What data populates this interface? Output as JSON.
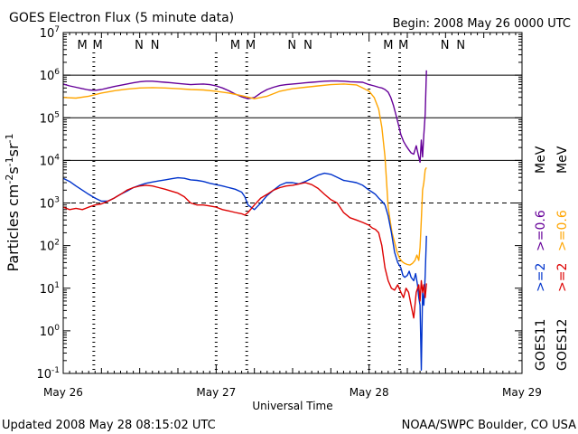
{
  "header": {
    "title": "GOES Electron Flux (5 minute data)",
    "begin": "Begin: 2008 May 26 0000 UTC"
  },
  "footer": {
    "updated": "Updated 2008 May 28 08:15:02 UTC",
    "credit": "NOAA/SWPC Boulder, CO USA"
  },
  "colors": {
    "goes11_06": "#660099",
    "goes12_06": "#ffa500",
    "goes11_2": "#0033cc",
    "goes12_2": "#dd0000",
    "marker_M": "#dd0000",
    "marker_N": "#0033cc",
    "axis": "#000000"
  },
  "chart_data": {
    "type": "line",
    "title": "GOES Electron Flux (5 minute data)",
    "xlabel": "Universal Time",
    "ylabel_parts": {
      "base": "Particles cm",
      "e1": "-2",
      "s": "s",
      "e2": "-1",
      "sr": "sr",
      "e3": "-1"
    },
    "y_scale": "log",
    "ylim": [
      0.1,
      10000000
    ],
    "y_ticks": [
      {
        "mantissa": "10",
        "exp": "-1",
        "value": 0.1
      },
      {
        "mantissa": "10",
        "exp": "0",
        "value": 1
      },
      {
        "mantissa": "10",
        "exp": "1",
        "value": 10
      },
      {
        "mantissa": "10",
        "exp": "2",
        "value": 100
      },
      {
        "mantissa": "10",
        "exp": "3",
        "value": 1000
      },
      {
        "mantissa": "10",
        "exp": "4",
        "value": 10000
      },
      {
        "mantissa": "10",
        "exp": "5",
        "value": 100000
      },
      {
        "mantissa": "10",
        "exp": "6",
        "value": 1000000
      },
      {
        "mantissa": "10",
        "exp": "7",
        "value": 10000000
      }
    ],
    "xlim": [
      0,
      72
    ],
    "x_unit": "hours since 2008 May 26 0000 UTC",
    "x_ticks": [
      {
        "label": "May 26",
        "value": 0
      },
      {
        "label": "May 27",
        "value": 24
      },
      {
        "label": "May 28",
        "value": 48
      },
      {
        "label": "May 29",
        "value": 72
      }
    ],
    "thresholds": [
      1000,
      10000,
      100000,
      1000000
    ],
    "threshold_dashed": 1000,
    "legend": {
      "goes11": "GOES11",
      "goes12": "GOES12",
      "e2_11": ">=2",
      "e2_12": ">=2",
      "e06_11": ">=0.6",
      "e06_12": ">=0.6",
      "unit": "MeV"
    },
    "markers": [
      {
        "label": "M",
        "x": 3.0,
        "color": "marker_M"
      },
      {
        "label": "M",
        "x": 5.4,
        "color": "marker_N"
      },
      {
        "label": "N",
        "x": 11.9,
        "color": "marker_M"
      },
      {
        "label": "N",
        "x": 14.4,
        "color": "marker_N"
      },
      {
        "label": "M",
        "x": 27.0,
        "color": "marker_M"
      },
      {
        "label": "M",
        "x": 29.4,
        "color": "marker_N"
      },
      {
        "label": "N",
        "x": 35.9,
        "color": "marker_M"
      },
      {
        "label": "N",
        "x": 38.4,
        "color": "marker_N"
      },
      {
        "label": "M",
        "x": 51.0,
        "color": "marker_M"
      },
      {
        "label": "M",
        "x": 53.4,
        "color": "marker_N"
      },
      {
        "label": "N",
        "x": 59.9,
        "color": "marker_M"
      },
      {
        "label": "N",
        "x": 62.4,
        "color": "marker_N"
      }
    ],
    "local_noon_lines": [
      {
        "x": 24.0
      },
      {
        "x": 48.0
      },
      {
        "x": 28.8
      },
      {
        "x": 52.8
      },
      {
        "x": 4.8
      }
    ],
    "series": [
      {
        "name": "GOES11 >=0.6 MeV",
        "color": "goes11_06",
        "x": [
          0,
          1,
          2,
          3,
          4,
          5,
          6,
          7,
          8,
          9,
          10,
          11,
          12,
          13,
          14,
          15,
          16,
          17,
          18,
          19,
          20,
          21,
          22,
          23,
          24,
          25,
          26,
          27,
          28,
          29,
          30,
          31,
          32,
          33,
          34,
          35,
          36,
          37,
          38,
          39,
          40,
          41,
          42,
          43,
          44,
          45,
          46,
          47,
          48,
          48.8,
          49.5,
          50.0,
          50.5,
          51.0,
          51.4,
          51.8,
          52.2,
          52.6,
          53.0,
          53.4,
          53.8,
          54.2,
          54.6,
          55.0,
          55.4,
          55.7,
          56.0,
          56.2,
          56.4,
          56.6,
          56.8,
          57.0
        ],
        "y": [
          620000,
          560000,
          520000,
          480000,
          450000,
          440000,
          460000,
          500000,
          540000,
          580000,
          620000,
          660000,
          700000,
          720000,
          720000,
          700000,
          680000,
          660000,
          640000,
          620000,
          600000,
          610000,
          620000,
          600000,
          560000,
          500000,
          430000,
          360000,
          310000,
          280000,
          300000,
          380000,
          460000,
          520000,
          570000,
          600000,
          620000,
          640000,
          660000,
          680000,
          700000,
          720000,
          730000,
          730000,
          720000,
          700000,
          690000,
          680000,
          600000,
          560000,
          520000,
          500000,
          460000,
          400000,
          300000,
          200000,
          120000,
          70000,
          40000,
          28000,
          22000,
          18000,
          15000,
          14000,
          22000,
          14000,
          9000,
          30000,
          12000,
          40000,
          120000,
          1300000
        ]
      },
      {
        "name": "GOES12 >=0.6 MeV",
        "color": "goes12_06",
        "x": [
          0,
          2,
          4,
          6,
          8,
          10,
          12,
          14,
          16,
          18,
          20,
          22,
          24,
          26,
          28,
          30,
          32,
          34,
          36,
          38,
          40,
          42,
          44,
          46,
          47,
          48,
          48.8,
          49.5,
          50.0,
          50.5,
          51.0,
          51.3,
          51.6,
          52.0,
          52.4,
          52.8,
          53.2,
          53.6,
          54.0,
          54.4,
          54.8,
          55.2,
          55.5,
          55.8,
          56.0,
          56.2,
          56.4,
          56.6,
          56.8,
          57.0
        ],
        "y": [
          300000,
          290000,
          320000,
          380000,
          430000,
          470000,
          500000,
          510000,
          500000,
          480000,
          460000,
          450000,
          420000,
          380000,
          330000,
          280000,
          320000,
          420000,
          480000,
          520000,
          560000,
          600000,
          620000,
          590000,
          500000,
          420000,
          300000,
          160000,
          60000,
          12000,
          800,
          400,
          200,
          120,
          70,
          50,
          42,
          38,
          36,
          35,
          38,
          45,
          60,
          45,
          90,
          400,
          2000,
          3000,
          6000,
          6800
        ]
      },
      {
        "name": "GOES11 >=2 MeV",
        "color": "goes11_2",
        "x": [
          0,
          1,
          2,
          3,
          4,
          5,
          6,
          7,
          8,
          9,
          10,
          11,
          12,
          13,
          14,
          15,
          16,
          17,
          18,
          19,
          20,
          21,
          22,
          23,
          24,
          25,
          26,
          27,
          28,
          28.5,
          29,
          30,
          31,
          32,
          33,
          34,
          35,
          36,
          37,
          38,
          39,
          40,
          41,
          42,
          43,
          44,
          45,
          46,
          47,
          48,
          48.5,
          49.0,
          49.5,
          50.0,
          50.5,
          51.0,
          51.5,
          52.0,
          52.5,
          53.0,
          53.3,
          53.6,
          54.0,
          54.3,
          54.6,
          55.0,
          55.3,
          55.6,
          55.8,
          56.0,
          56.2,
          56.4,
          56.6,
          56.8,
          57.0
        ],
        "y": [
          3800,
          3200,
          2500,
          2000,
          1600,
          1300,
          1100,
          1100,
          1300,
          1600,
          1900,
          2300,
          2600,
          2900,
          3100,
          3300,
          3500,
          3700,
          3900,
          3800,
          3500,
          3400,
          3200,
          2900,
          2700,
          2500,
          2300,
          2100,
          1800,
          1400,
          900,
          700,
          1000,
          1500,
          2000,
          2600,
          3000,
          3000,
          2800,
          3200,
          3800,
          4500,
          5000,
          4700,
          4000,
          3400,
          3200,
          3000,
          2600,
          2000,
          1800,
          1600,
          1300,
          1100,
          900,
          500,
          200,
          70,
          40,
          30,
          20,
          18,
          20,
          25,
          18,
          15,
          22,
          12,
          6,
          4,
          0.12,
          8,
          4,
          20,
          170
        ]
      },
      {
        "name": "GOES12 >=2 MeV",
        "color": "goes12_2",
        "x": [
          0,
          1,
          2,
          3,
          4,
          5,
          6,
          7,
          8,
          9,
          10,
          11,
          12,
          13,
          14,
          15,
          16,
          17,
          18,
          19,
          20,
          21,
          22,
          23,
          24,
          25,
          26,
          27,
          28,
          28.5,
          29,
          30,
          31,
          32,
          33,
          34,
          35,
          36,
          37,
          38,
          39,
          40,
          41,
          42,
          43,
          44,
          45,
          46,
          47,
          48,
          48.5,
          49.0,
          49.5,
          50.0,
          50.5,
          51.0,
          51.5,
          52.0,
          52.5,
          53.0,
          53.4,
          53.8,
          54.2,
          54.6,
          55.0,
          55.4,
          55.8,
          56.0,
          56.2,
          56.4,
          56.6,
          56.8,
          57.0
        ],
        "y": [
          800,
          700,
          750,
          700,
          800,
          900,
          950,
          1100,
          1300,
          1600,
          2000,
          2300,
          2500,
          2600,
          2500,
          2300,
          2100,
          1900,
          1700,
          1400,
          1000,
          900,
          900,
          850,
          800,
          700,
          650,
          600,
          560,
          520,
          600,
          900,
          1300,
          1600,
          2000,
          2300,
          2500,
          2600,
          2800,
          3000,
          2700,
          2200,
          1600,
          1200,
          1000,
          600,
          450,
          400,
          350,
          300,
          260,
          240,
          200,
          100,
          30,
          15,
          10,
          9,
          12,
          8,
          6,
          10,
          8,
          4,
          2,
          8,
          12,
          5,
          15,
          8,
          12,
          6,
          13
        ]
      }
    ]
  }
}
